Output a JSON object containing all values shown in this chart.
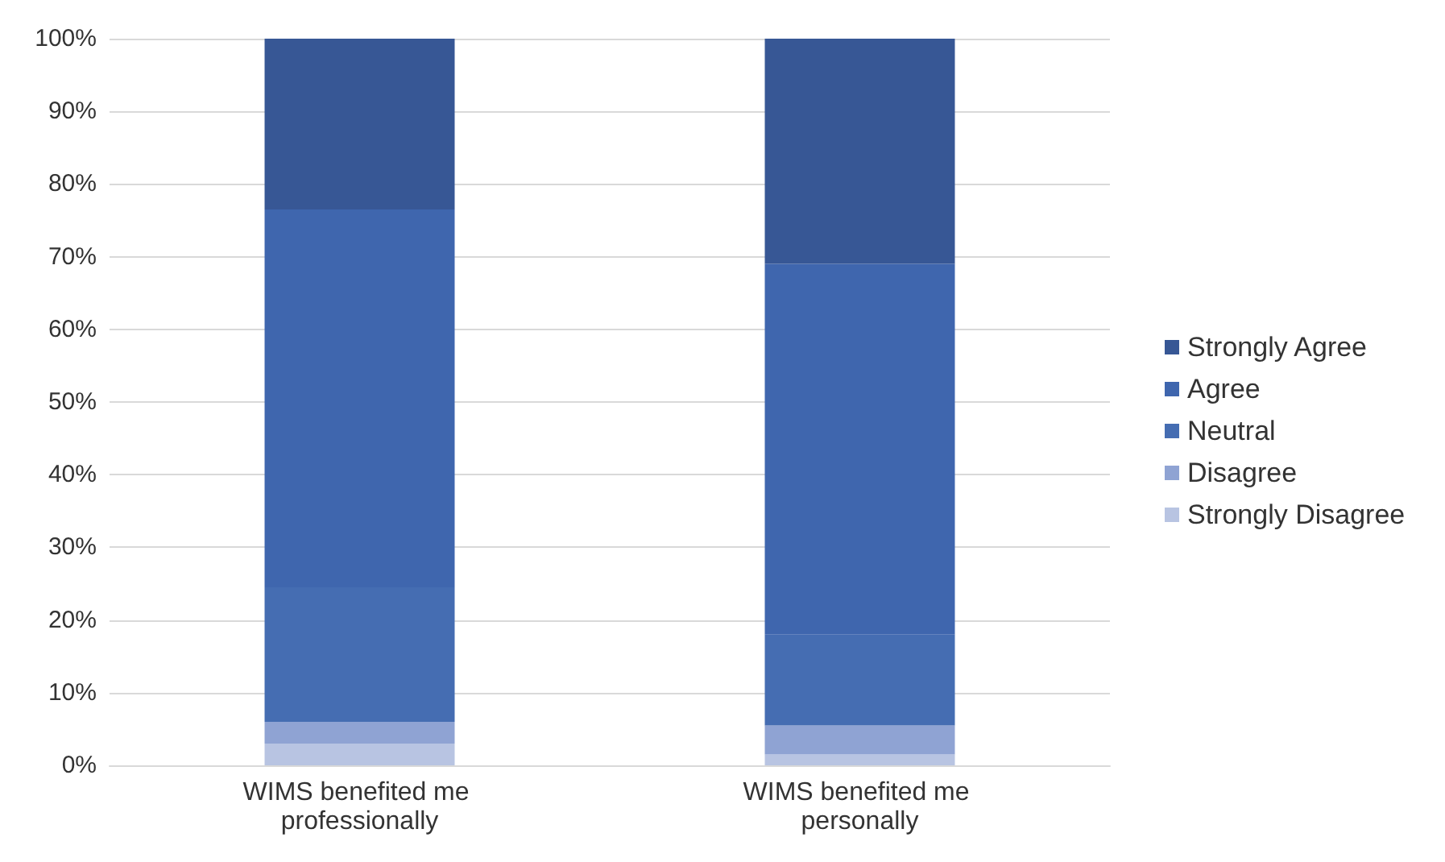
{
  "chart_data": {
    "type": "bar",
    "stacked": true,
    "categories": [
      "WIMS benefited me professionally",
      "WIMS benefited me personally"
    ],
    "series": [
      {
        "name": "Strongly Disagree",
        "color": "#b8c4e2",
        "values": [
          3,
          1.5
        ]
      },
      {
        "name": "Disagree",
        "color": "#8fa3d3",
        "values": [
          3,
          4
        ]
      },
      {
        "name": "Neutral",
        "color": "#456db2",
        "values": [
          18.5,
          12.5
        ]
      },
      {
        "name": "Agree",
        "color": "#3f66ae",
        "values": [
          52,
          51
        ]
      },
      {
        "name": "Strongly Agree",
        "color": "#375795",
        "values": [
          23.5,
          31
        ]
      }
    ],
    "ylim": [
      0,
      100
    ],
    "yticks": [
      {
        "value": 0,
        "label": "0%"
      },
      {
        "value": 10,
        "label": "10%"
      },
      {
        "value": 20,
        "label": "20%"
      },
      {
        "value": 30,
        "label": "30%"
      },
      {
        "value": 40,
        "label": "40%"
      },
      {
        "value": 50,
        "label": "50%"
      },
      {
        "value": 60,
        "label": "60%"
      },
      {
        "value": 70,
        "label": "70%"
      },
      {
        "value": 80,
        "label": "80%"
      },
      {
        "value": 90,
        "label": "90%"
      },
      {
        "value": 100,
        "label": "100%"
      }
    ],
    "grid": "y",
    "legend": "right"
  }
}
